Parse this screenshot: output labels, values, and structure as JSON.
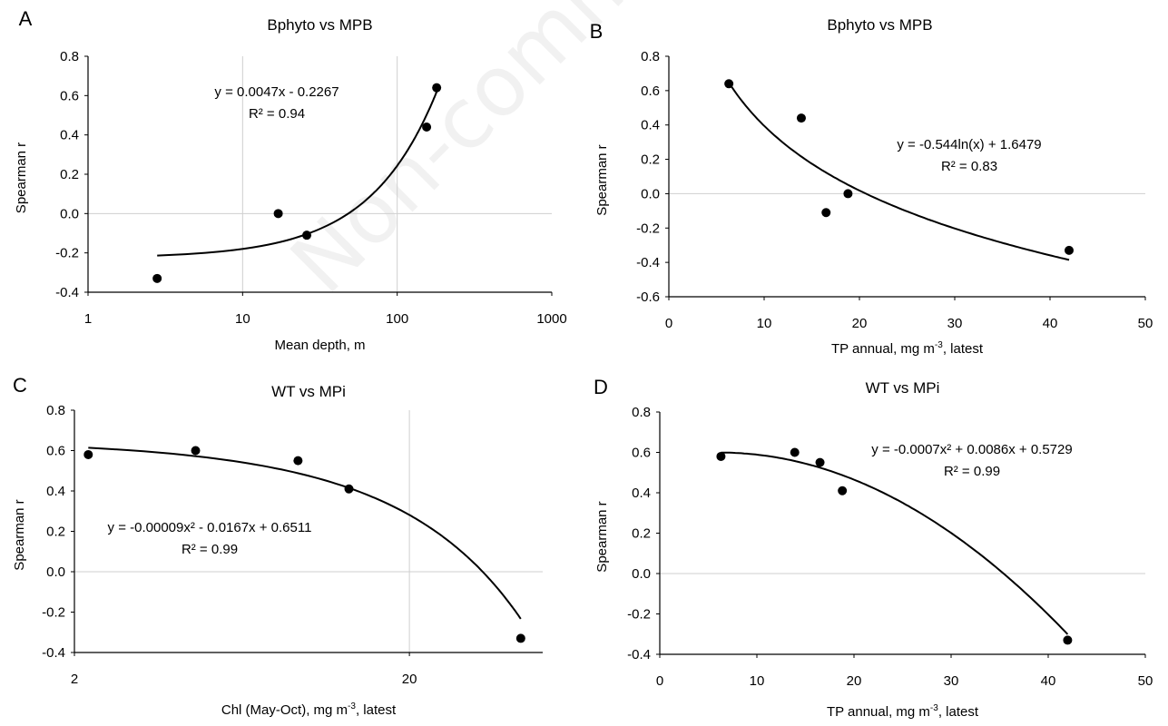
{
  "watermark": "Non-commercial",
  "panels": [
    {
      "letter": "A",
      "title": "Bphyto vs MPB",
      "xlabel": "Mean depth, m",
      "xlabel_sup": "",
      "xlabel_after": "",
      "ylabel": "Spearman r",
      "x_scale": "log",
      "xlim": [
        1,
        1000
      ],
      "xticks": [
        1,
        10,
        100,
        1000
      ],
      "xtick_labels": [
        "1",
        "10",
        "100",
        "1000"
      ],
      "ylim": [
        -0.4,
        0.8
      ],
      "yticks": [
        -0.4,
        -0.2,
        0.0,
        0.2,
        0.4,
        0.6,
        0.8
      ],
      "ytick_labels": [
        "-0.4",
        "-0.2",
        "0.0",
        "0.2",
        "0.4",
        "0.6",
        "0.8"
      ],
      "vgrid": [
        10,
        100
      ],
      "hgrid": [
        0
      ],
      "equation": "y = 0.0047x - 0.2267",
      "r2": "R² = 0.94",
      "trend": {
        "type": "linear",
        "a": 0.0047,
        "b": -0.2267,
        "x_from": 2.8,
        "x_to": 180
      }
    },
    {
      "letter": "B",
      "title": "Bphyto vs MPB",
      "xlabel": "TP annual, mg m",
      "xlabel_sup": "-3",
      "xlabel_after": ", latest",
      "ylabel": "Spearman r",
      "x_scale": "linear",
      "xlim": [
        0,
        50
      ],
      "xticks": [
        0,
        10,
        20,
        30,
        40,
        50
      ],
      "xtick_labels": [
        "0",
        "10",
        "20",
        "30",
        "40",
        "50"
      ],
      "ylim": [
        -0.6,
        0.8
      ],
      "yticks": [
        -0.6,
        -0.4,
        -0.2,
        0.0,
        0.2,
        0.4,
        0.6,
        0.8
      ],
      "ytick_labels": [
        "-0.6",
        "-0.4",
        "-0.2",
        "0.0",
        "0.2",
        "0.4",
        "0.6",
        "0.8"
      ],
      "vgrid": [],
      "hgrid": [
        0
      ],
      "equation": "y = -0.544ln(x) + 1.6479",
      "r2": "R² = 0.83",
      "trend": {
        "type": "ln",
        "a": -0.544,
        "b": 1.6479,
        "x_from": 6.3,
        "x_to": 42
      }
    },
    {
      "letter": "C",
      "title": "WT vs MPi",
      "xlabel": "Chl (May-Oct), mg m",
      "xlabel_sup": "-3",
      "xlabel_after": ", latest",
      "ylabel": "Spearman r",
      "x_scale": "log",
      "xlim": [
        2,
        50
      ],
      "xticks": [
        2,
        20
      ],
      "xtick_labels": [
        "2",
        "20"
      ],
      "ylim": [
        -0.4,
        0.8
      ],
      "yticks": [
        -0.4,
        -0.2,
        0.0,
        0.2,
        0.4,
        0.6,
        0.8
      ],
      "ytick_labels": [
        "-0.4",
        "-0.2",
        "0.0",
        "0.2",
        "0.4",
        "0.6",
        "0.8"
      ],
      "vgrid": [
        20
      ],
      "hgrid": [
        0
      ],
      "equation": "y = -0.00009x² - 0.0167x + 0.6511",
      "r2": "R² = 0.99",
      "trend": {
        "type": "poly2",
        "a": -9e-05,
        "b": -0.0167,
        "c": 0.6511,
        "x_from": 2.2,
        "x_to": 43
      }
    },
    {
      "letter": "D",
      "title": "WT vs MPi",
      "xlabel": "TP annual, mg m",
      "xlabel_sup": "-3",
      "xlabel_after": ", latest",
      "ylabel": "Spearman r",
      "x_scale": "linear",
      "xlim": [
        0,
        50
      ],
      "xticks": [
        0,
        10,
        20,
        30,
        40,
        50
      ],
      "xtick_labels": [
        "0",
        "10",
        "20",
        "30",
        "40",
        "50"
      ],
      "ylim": [
        -0.4,
        0.8
      ],
      "yticks": [
        -0.4,
        -0.2,
        0.0,
        0.2,
        0.4,
        0.6,
        0.8
      ],
      "ytick_labels": [
        "-0.4",
        "-0.2",
        "0.0",
        "0.2",
        "0.4",
        "0.6",
        "0.8"
      ],
      "vgrid": [],
      "hgrid": [
        0
      ],
      "equation": "y = -0.0007x² + 0.0086x + 0.5729",
      "r2": "R² = 0.99",
      "trend": {
        "type": "poly2",
        "a": -0.0007,
        "b": 0.0086,
        "c": 0.5729,
        "x_from": 6.3,
        "x_to": 42
      }
    }
  ],
  "chart_data": [
    {
      "type": "scatter",
      "title": "Bphyto vs MPB",
      "xlabel": "Mean depth, m",
      "ylabel": "Spearman r",
      "x_scale": "log",
      "xlim": [
        1,
        1000
      ],
      "ylim": [
        -0.4,
        0.8
      ],
      "grid": true,
      "points": [
        [
          2.8,
          -0.33
        ],
        [
          17,
          0.0
        ],
        [
          26,
          -0.11
        ],
        [
          155,
          0.44
        ],
        [
          180,
          0.64
        ]
      ],
      "trendline": "y = 0.0047x - 0.2267",
      "r2": 0.94
    },
    {
      "type": "scatter",
      "title": "Bphyto vs MPB",
      "xlabel": "TP annual, mg m-3, latest",
      "ylabel": "Spearman r",
      "x_scale": "linear",
      "xlim": [
        0,
        50
      ],
      "ylim": [
        -0.6,
        0.8
      ],
      "grid": false,
      "points": [
        [
          6.3,
          0.64
        ],
        [
          13.9,
          0.44
        ],
        [
          16.5,
          -0.11
        ],
        [
          18.8,
          0.0
        ],
        [
          42,
          -0.33
        ]
      ],
      "trendline": "y = -0.544ln(x) + 1.6479",
      "r2": 0.83
    },
    {
      "type": "scatter",
      "title": "WT vs MPi",
      "xlabel": "Chl (May-Oct), mg m-3, latest",
      "ylabel": "Spearman r",
      "x_scale": "log",
      "xlim": [
        2,
        50
      ],
      "ylim": [
        -0.4,
        0.8
      ],
      "grid": true,
      "points": [
        [
          2.2,
          0.58
        ],
        [
          4.6,
          0.6
        ],
        [
          9.3,
          0.55
        ],
        [
          13.2,
          0.41
        ],
        [
          43,
          -0.33
        ]
      ],
      "trendline": "y = -0.00009x² - 0.0167x + 0.6511",
      "r2": 0.99
    },
    {
      "type": "scatter",
      "title": "WT vs MPi",
      "xlabel": "TP annual, mg m-3, latest",
      "ylabel": "Spearman r",
      "x_scale": "linear",
      "xlim": [
        0,
        50
      ],
      "ylim": [
        -0.4,
        0.8
      ],
      "grid": false,
      "points": [
        [
          6.3,
          0.58
        ],
        [
          13.9,
          0.6
        ],
        [
          16.5,
          0.55
        ],
        [
          18.8,
          0.41
        ],
        [
          42,
          -0.33
        ]
      ],
      "trendline": "y = -0.0007x² + 0.0086x + 0.5729",
      "r2": 0.99
    }
  ]
}
